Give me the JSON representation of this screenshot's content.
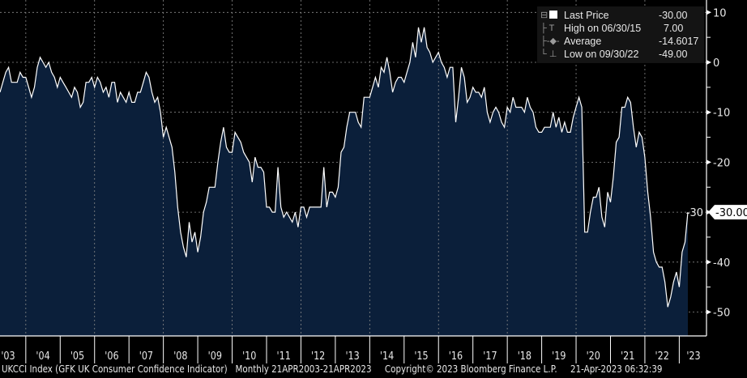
{
  "chart_data": {
    "type": "area",
    "frequency": "Monthly",
    "start": "2003-04",
    "end": "2023-04",
    "x_tick_labels": [
      "'03",
      "'04",
      "'05",
      "'06",
      "'07",
      "'08",
      "'09",
      "'10",
      "'11",
      "'12",
      "'13",
      "'14",
      "'15",
      "'16",
      "'17",
      "'18",
      "'19",
      "'20",
      "'21",
      "'22",
      "'23"
    ],
    "y_tick_labels": [
      "10",
      "0",
      "-10",
      "-20",
      "-30",
      "-40",
      "-50"
    ],
    "y_ticks": [
      10,
      0,
      -10,
      -20,
      -30,
      -40,
      -50
    ],
    "ylim": [
      -54.5,
      15
    ],
    "grid": true,
    "values": [
      -6,
      -4,
      -2,
      -1,
      -4,
      -4,
      -4,
      -2,
      -3,
      -3,
      -5,
      -7,
      -5,
      -1,
      1,
      0,
      -1,
      0,
      -2,
      -3,
      -5,
      -3,
      -4,
      -5,
      -6,
      -7,
      -5,
      -6,
      -9,
      -8,
      -4,
      -4,
      -3,
      -5,
      -3,
      -4,
      -6,
      -5,
      -7,
      -4,
      -4,
      -8,
      -6,
      -7,
      -8,
      -6,
      -8,
      -8,
      -6,
      -6,
      -4,
      -2,
      -3,
      -6,
      -8,
      -7,
      -10,
      -15,
      -13,
      -15,
      -17,
      -22,
      -29,
      -34,
      -37,
      -39,
      -32,
      -36,
      -34,
      -38,
      -35,
      -30,
      -28,
      -25,
      -25,
      -25,
      -20,
      -16,
      -13,
      -17,
      -18,
      -18,
      -14,
      -15,
      -16,
      -18,
      -19,
      -20,
      -24,
      -19,
      -21,
      -21,
      -22,
      -29,
      -29,
      -30,
      -30,
      -21,
      -29,
      -31,
      -30,
      -31,
      -32,
      -30,
      -33,
      -29,
      -29,
      -31,
      -29,
      -29,
      -29,
      -29,
      -29,
      -21,
      -29,
      -26,
      -26,
      -27,
      -25,
      -18,
      -17,
      -13,
      -10,
      -10,
      -10,
      -12,
      -13,
      -7,
      -7,
      -7,
      -5,
      -3,
      -5,
      -1,
      -2,
      1,
      -2,
      -6,
      -4,
      -3,
      -3,
      -4,
      -2,
      0,
      4,
      1,
      7,
      4,
      7,
      3,
      2,
      0,
      1,
      2,
      0,
      -1,
      -3,
      -1,
      -1,
      -12,
      -7,
      -1,
      -3,
      -8,
      -7,
      -5,
      -6,
      -6,
      -7,
      -5,
      -10,
      -12,
      -10,
      -9,
      -10,
      -12,
      -13,
      -9,
      -10,
      -7,
      -9,
      -9,
      -9,
      -10,
      -7,
      -9,
      -10,
      -13,
      -14,
      -14,
      -13,
      -13,
      -13,
      -10,
      -13,
      -11,
      -14,
      -12,
      -14,
      -14,
      -11,
      -9,
      -7,
      -9,
      -34,
      -34,
      -30,
      -27,
      -27,
      -25,
      -31,
      -33,
      -26,
      -28,
      -23,
      -16,
      -15,
      -9,
      -9,
      -7,
      -8,
      -13,
      -17,
      -14,
      -15,
      -19,
      -26,
      -31,
      -38,
      -40,
      -41,
      -41,
      -44,
      -49,
      -47,
      -44,
      -42,
      -45,
      -38,
      -36,
      -30
    ],
    "last_value_label": "-30.00",
    "legend": [
      {
        "icon": "square-icon",
        "label": "Last Price",
        "value": "-30.00"
      },
      {
        "icon": "high-marker-icon",
        "label": "High on 06/30/15",
        "value": "7.00"
      },
      {
        "icon": "average-marker-icon",
        "label": "Average",
        "value": "-14.6017"
      },
      {
        "icon": "low-marker-icon",
        "label": "Low on 09/30/22",
        "value": "-49.00"
      }
    ],
    "legend_placement": "top-right",
    "colors": {
      "background": "#000000",
      "fill": "#0b1f3a",
      "line": "#ffffff",
      "grid": "#8a8a8a"
    }
  },
  "footer": {
    "security": "UKCCI Index (GFK UK Consumer Confidence Indicator)",
    "range": "Monthly 21APR2003-21APR2023",
    "copyright": "Copyright© 2023 Bloomberg Finance L.P.",
    "timestamp": "21-Apr-2023 06:32:39"
  }
}
